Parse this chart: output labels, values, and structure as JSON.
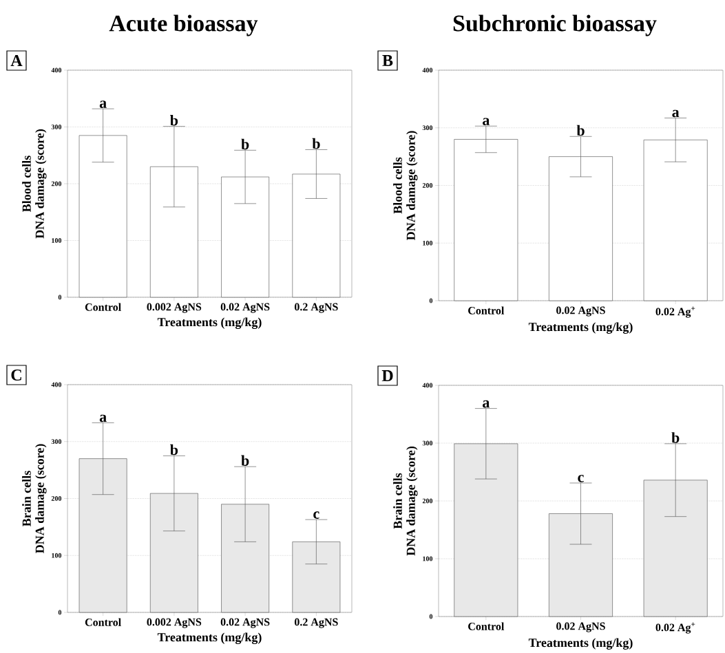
{
  "chart_data": [
    {
      "type": "bar",
      "title": "Acute bioassay",
      "subtitle": "A",
      "xlabel": "Treatments (mg/kg)",
      "ylabel": "Blood cells DNA damage (score)",
      "categories": [
        "Control",
        "0.002 AgNS",
        "0.02 AgNS",
        "0.2 AgNS"
      ],
      "values": [
        285,
        230,
        212,
        217
      ],
      "errors": [
        47,
        71,
        47,
        43
      ],
      "color": "#ffffff",
      "ylim": [
        0,
        400
      ],
      "yticks": [
        0,
        100,
        200,
        300,
        400
      ],
      "grid": "y",
      "annotations": [
        "a",
        "b",
        "b",
        "b"
      ]
    },
    {
      "type": "bar",
      "title": "Subchronic bioassay",
      "subtitle": "B",
      "xlabel": "Treatments (mg/kg)",
      "ylabel": "Blood cells DNA damage (score)",
      "categories": [
        "Control",
        "0.02 AgNS",
        "0.02 Ag$^{+}$"
      ],
      "values": [
        280,
        250,
        279
      ],
      "errors": [
        23,
        35,
        38
      ],
      "color": "#ffffff",
      "ylim": [
        0,
        400
      ],
      "yticks": [
        0,
        100,
        200,
        300,
        400
      ],
      "grid": "y",
      "annotations": [
        "a",
        "b",
        "a"
      ]
    },
    {
      "type": "bar",
      "subtitle": "C",
      "xlabel": "Treatments (mg/kg)",
      "ylabel": "Brain cells DNA damage (score)",
      "categories": [
        "Control",
        "0.002 AgNS",
        "0.02 AgNS",
        "0.2 AgNS"
      ],
      "values": [
        270,
        209,
        190,
        124
      ],
      "errors": [
        63,
        66,
        66,
        39
      ],
      "color": "#e8e8e8",
      "ylim": [
        0,
        400
      ],
      "yticks": [
        0,
        100,
        200,
        300,
        400
      ],
      "grid": "y",
      "annotations": [
        "a",
        "b",
        "b",
        "c"
      ]
    },
    {
      "type": "bar",
      "subtitle": "D",
      "xlabel": "Treatments (mg/kg)",
      "ylabel": "Brain cells DNA damage (score)",
      "categories": [
        "Control",
        "0.02 AgNS",
        "0.02 Ag$^{+}$"
      ],
      "values": [
        299,
        178,
        236
      ],
      "errors": [
        61,
        53,
        63
      ],
      "color": "#e8e8e8",
      "ylim": [
        0,
        400
      ],
      "yticks": [
        0,
        100,
        200,
        300,
        400
      ],
      "grid": "y",
      "annotations": [
        "a",
        "c",
        "b"
      ]
    }
  ]
}
